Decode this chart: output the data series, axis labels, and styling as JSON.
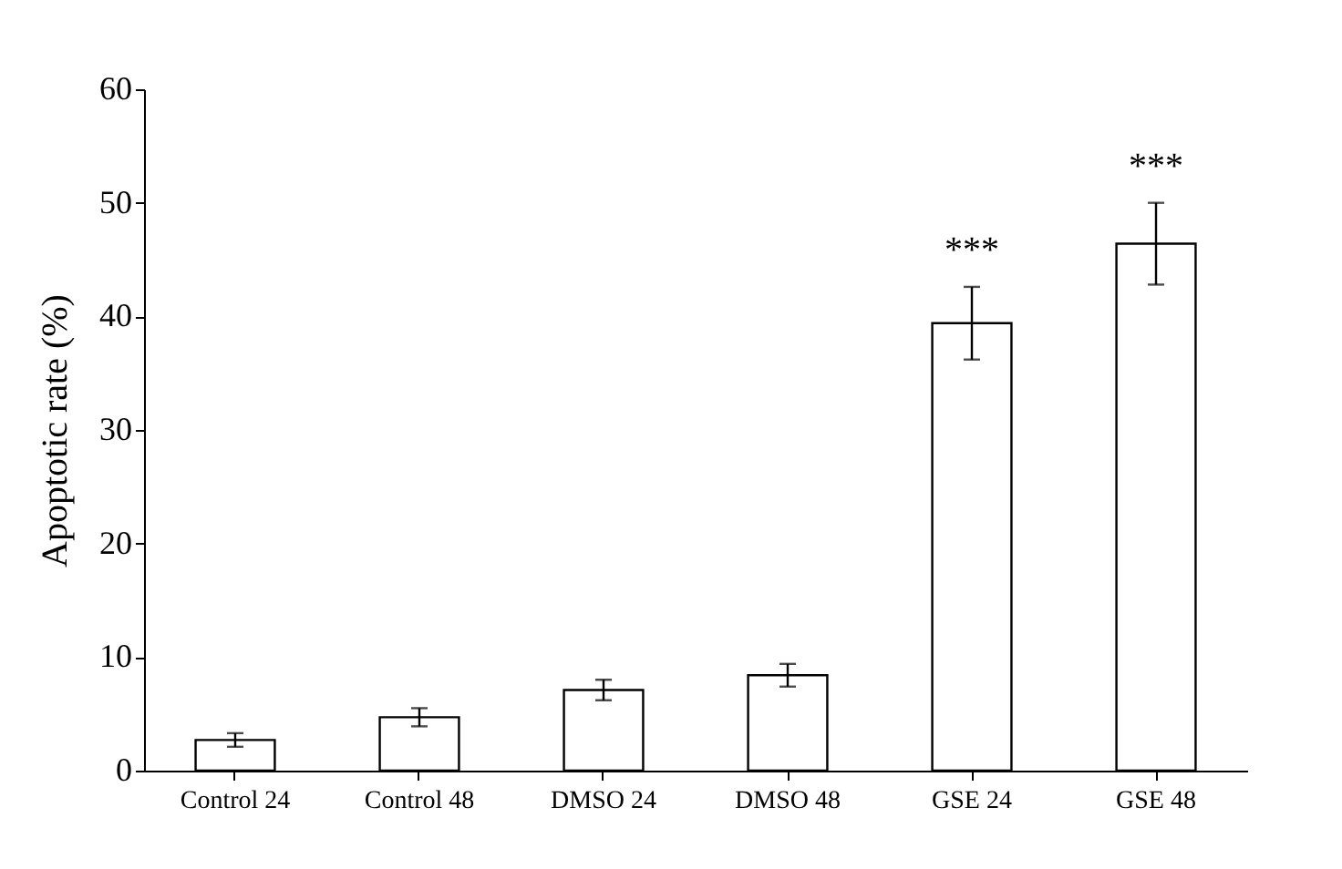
{
  "chart_data": {
    "type": "bar",
    "ylabel": "Apoptotic  rate (%)",
    "categories": [
      "Control 24",
      "Control 48",
      "DMSO 24",
      "DMSO 48",
      "GSE 24",
      "GSE 48"
    ],
    "values": [
      2.7,
      4.7,
      7.1,
      8.4,
      39.4,
      46.4
    ],
    "errors": [
      0.6,
      0.8,
      0.9,
      1.0,
      3.2,
      3.6
    ],
    "color": "#ffffff",
    "ylim": [
      0,
      60
    ],
    "yticks": [
      0,
      10,
      20,
      30,
      40,
      50,
      60
    ],
    "grid": false,
    "annotations": [
      "***",
      "***"
    ]
  }
}
